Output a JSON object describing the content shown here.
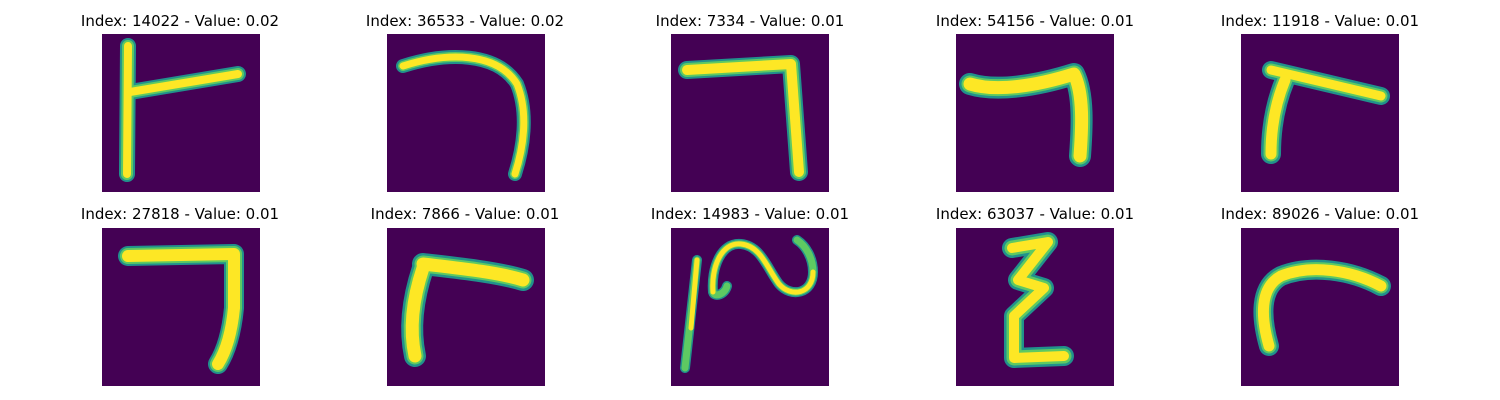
{
  "panels": [
    {
      "title": "Index: 14022 - Value: 0.02",
      "index": 14022,
      "value": 0.02,
      "glyph": "digit-7-with-vertical-bar"
    },
    {
      "title": "Index: 36533 - Value: 0.02",
      "index": 36533,
      "value": 0.02,
      "glyph": "curved-digit-7"
    },
    {
      "title": "Index: 7334 - Value: 0.01",
      "index": 7334,
      "value": 0.01,
      "glyph": "digit-7"
    },
    {
      "title": "Index: 54156 - Value: 0.01",
      "index": 54156,
      "value": 0.01,
      "glyph": "digit-7"
    },
    {
      "title": "Index: 11918 - Value: 0.01",
      "index": 11918,
      "value": 0.01,
      "glyph": "digit-7-short"
    },
    {
      "title": "Index: 27818 - Value: 0.01",
      "index": 27818,
      "value": 0.01,
      "glyph": "digit-7"
    },
    {
      "title": "Index: 7866 - Value: 0.01",
      "index": 7866,
      "value": 0.01,
      "glyph": "digit-7-short"
    },
    {
      "title": "Index: 14983 - Value: 0.01",
      "index": 14983,
      "value": 0.01,
      "glyph": "squiggle"
    },
    {
      "title": "Index: 63037 - Value: 0.01",
      "index": 63037,
      "value": 0.01,
      "glyph": "zigzag-digit-3"
    },
    {
      "title": "Index: 89026 - Value: 0.01",
      "index": 89026,
      "value": 0.01,
      "glyph": "hook"
    }
  ],
  "colors": {
    "background": "#440154",
    "stroke_edge": "#21918c",
    "stroke_mid": "#5ec962",
    "stroke_core": "#fde725"
  }
}
